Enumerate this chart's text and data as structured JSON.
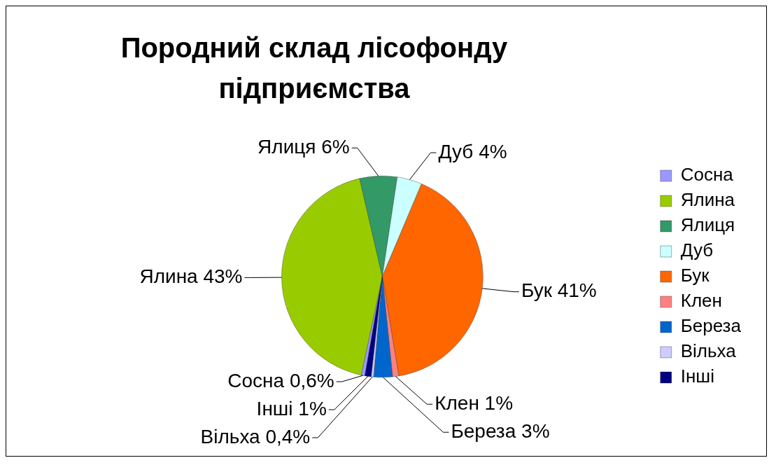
{
  "chart_data": {
    "type": "pie",
    "title": "Породний склад лісофонду підприємства",
    "categories": [
      "Сосна",
      "Ялина",
      "Ялиця",
      "Дуб",
      "Бук",
      "Клен",
      "Береза",
      "Вільха",
      "Інші"
    ],
    "values": [
      0.6,
      43,
      6,
      4,
      41,
      1,
      3,
      0.4,
      1
    ],
    "value_labels": [
      "0,6%",
      "43%",
      "6%",
      "4%",
      "41%",
      "1%",
      "3%",
      "0,4%",
      "1%"
    ],
    "colors": [
      "#9999ff",
      "#99cc00",
      "#339966",
      "#ccffff",
      "#ff6600",
      "#ff8080",
      "#0066cc",
      "#ccccff",
      "#000080"
    ],
    "legend": "right"
  }
}
